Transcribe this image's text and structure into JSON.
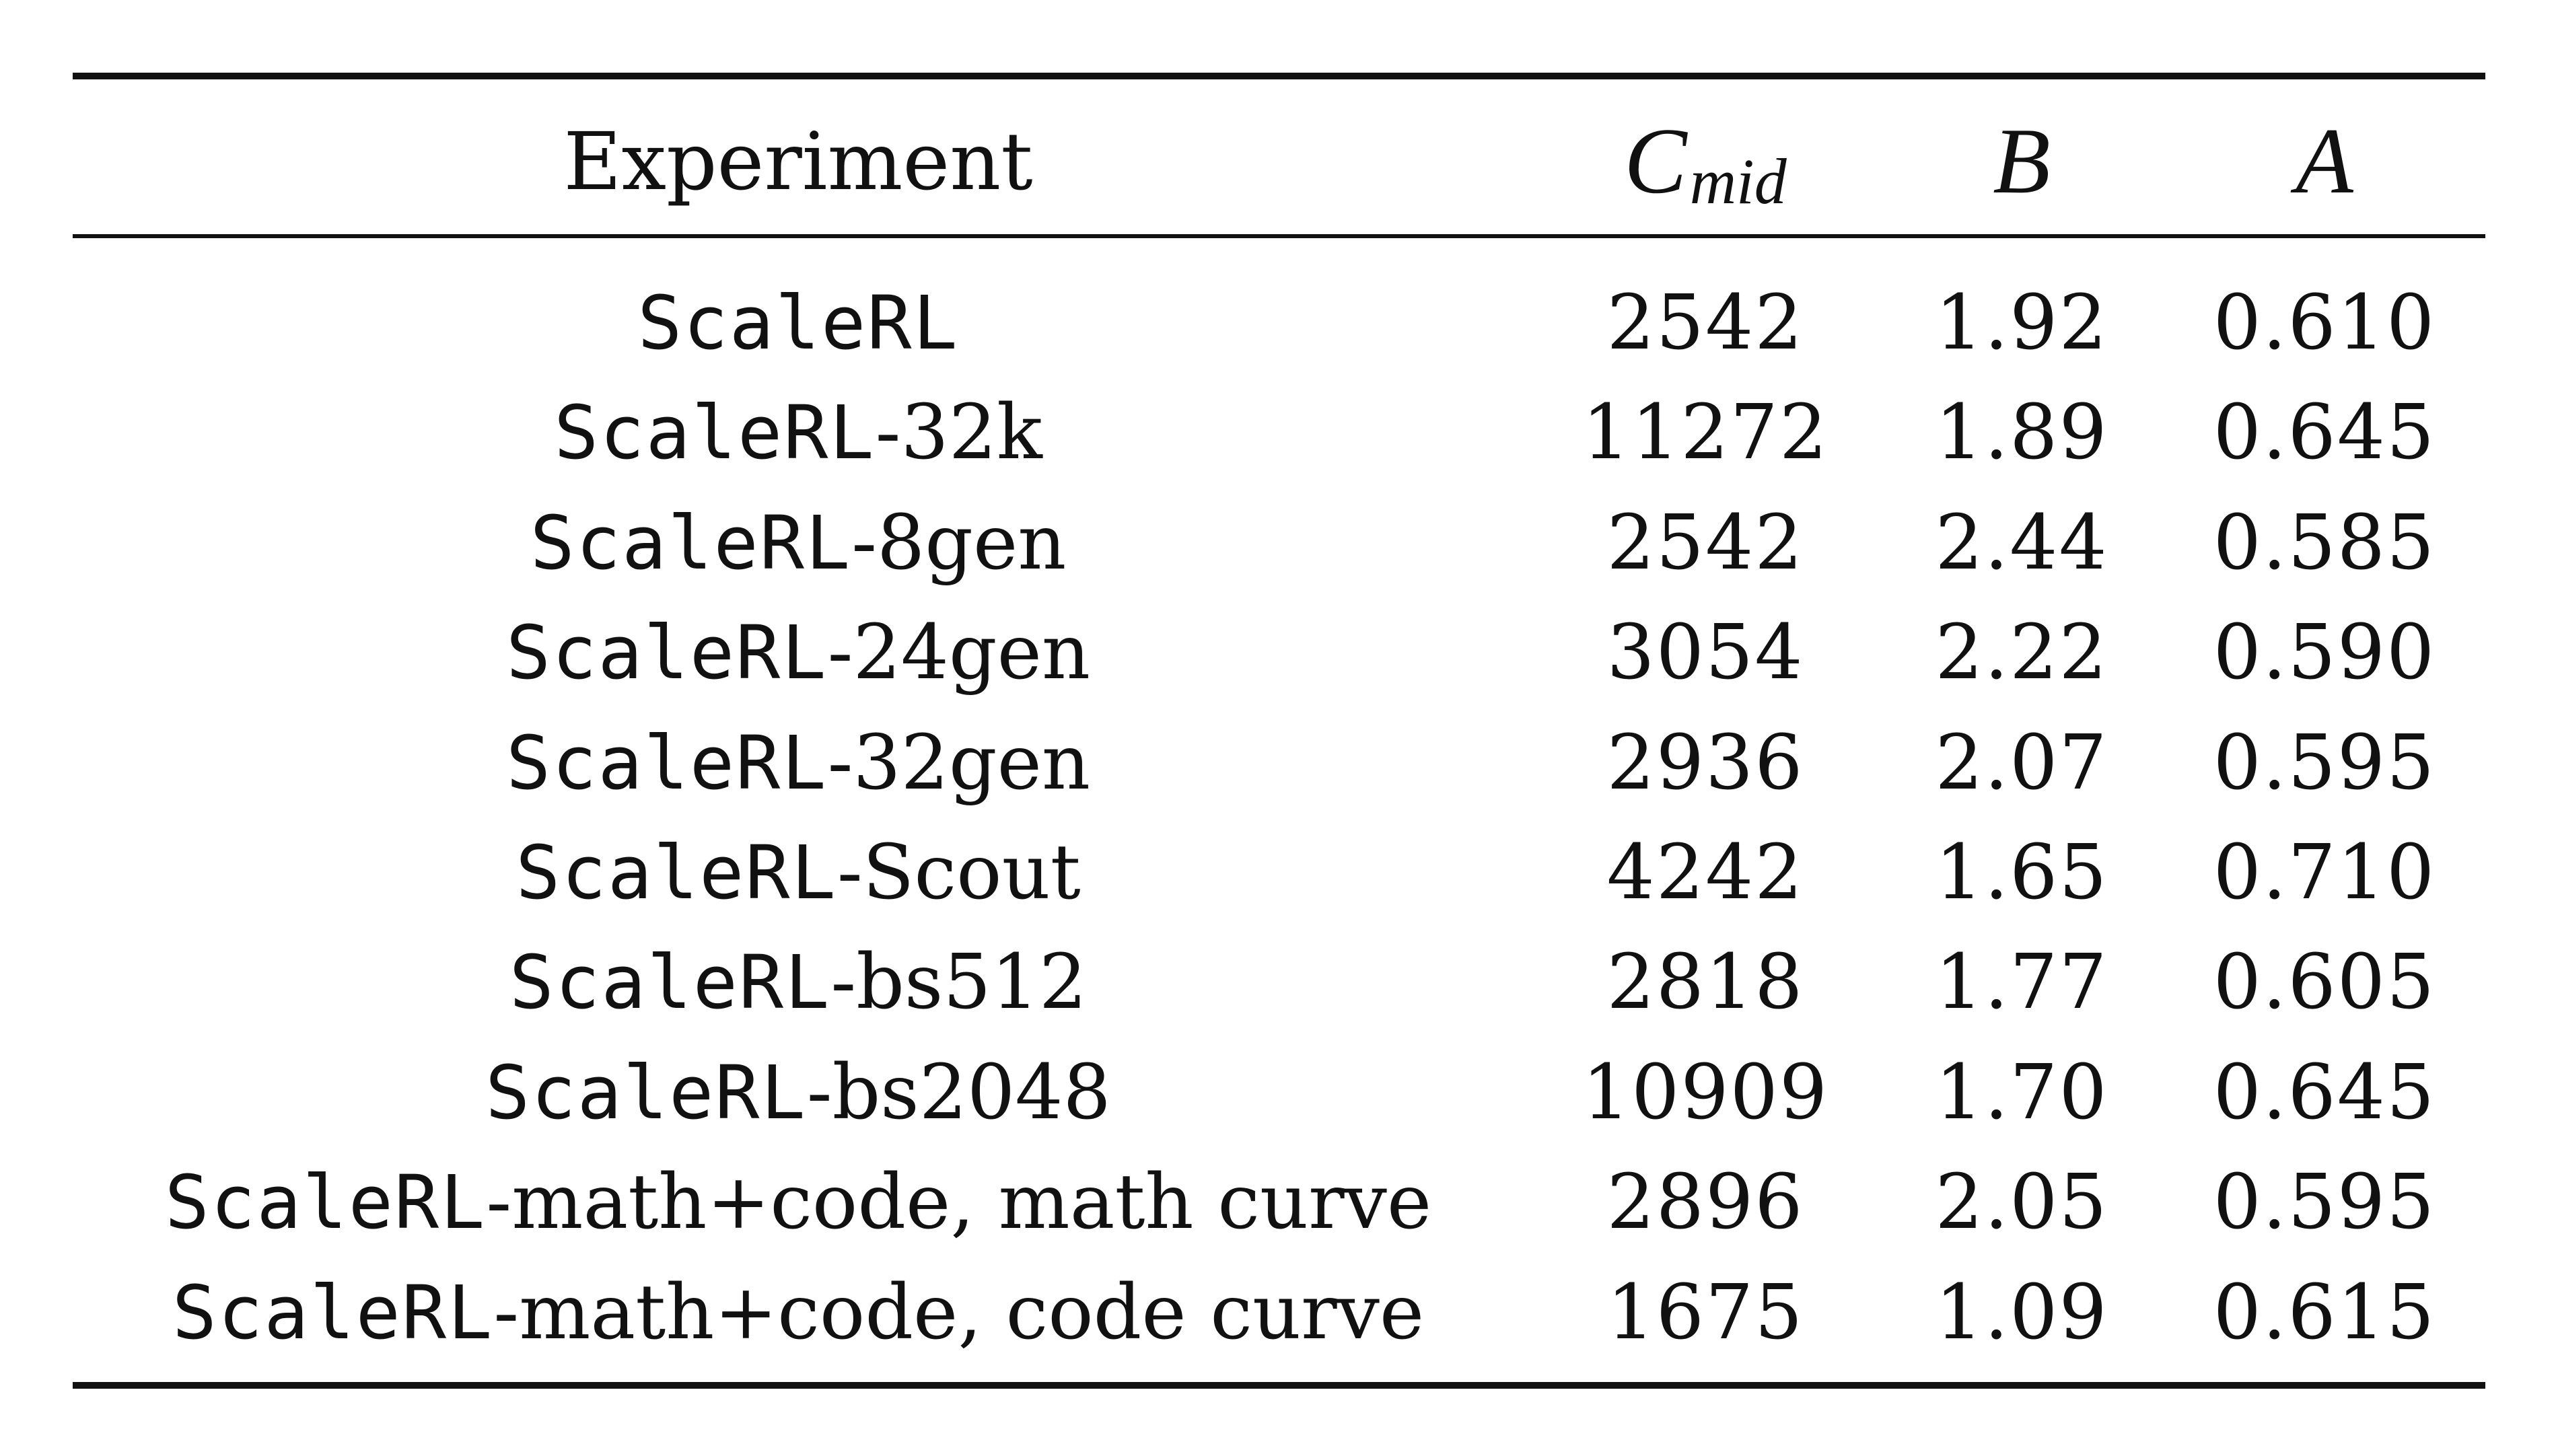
{
  "table": {
    "headers": {
      "experiment": "Experiment",
      "c_main": "C",
      "c_sub": "mid",
      "b": "B",
      "a": "A"
    },
    "rows": [
      {
        "mono": "ScaleRL",
        "rest": "",
        "c_mid": "2542",
        "b": "1.92",
        "a": "0.610"
      },
      {
        "mono": "ScaleRL",
        "rest": "-32k",
        "c_mid": "11272",
        "b": "1.89",
        "a": "0.645"
      },
      {
        "mono": "ScaleRL",
        "rest": "-8gen",
        "c_mid": "2542",
        "b": "2.44",
        "a": "0.585"
      },
      {
        "mono": "ScaleRL",
        "rest": "-24gen",
        "c_mid": "3054",
        "b": "2.22",
        "a": "0.590"
      },
      {
        "mono": "ScaleRL",
        "rest": "-32gen",
        "c_mid": "2936",
        "b": "2.07",
        "a": "0.595"
      },
      {
        "mono": "ScaleRL",
        "rest": "-Scout",
        "c_mid": "4242",
        "b": "1.65",
        "a": "0.710"
      },
      {
        "mono": "ScaleRL",
        "rest": "-bs512",
        "c_mid": "2818",
        "b": "1.77",
        "a": "0.605"
      },
      {
        "mono": "ScaleRL",
        "rest": "-bs2048",
        "c_mid": "10909",
        "b": "1.70",
        "a": "0.645"
      },
      {
        "mono": "ScaleRL",
        "rest": "-math+code, math curve",
        "c_mid": "2896",
        "b": "2.05",
        "a": "0.595"
      },
      {
        "mono": "ScaleRL",
        "rest": "-math+code, code curve",
        "c_mid": "1675",
        "b": "1.09",
        "a": "0.615"
      }
    ]
  }
}
